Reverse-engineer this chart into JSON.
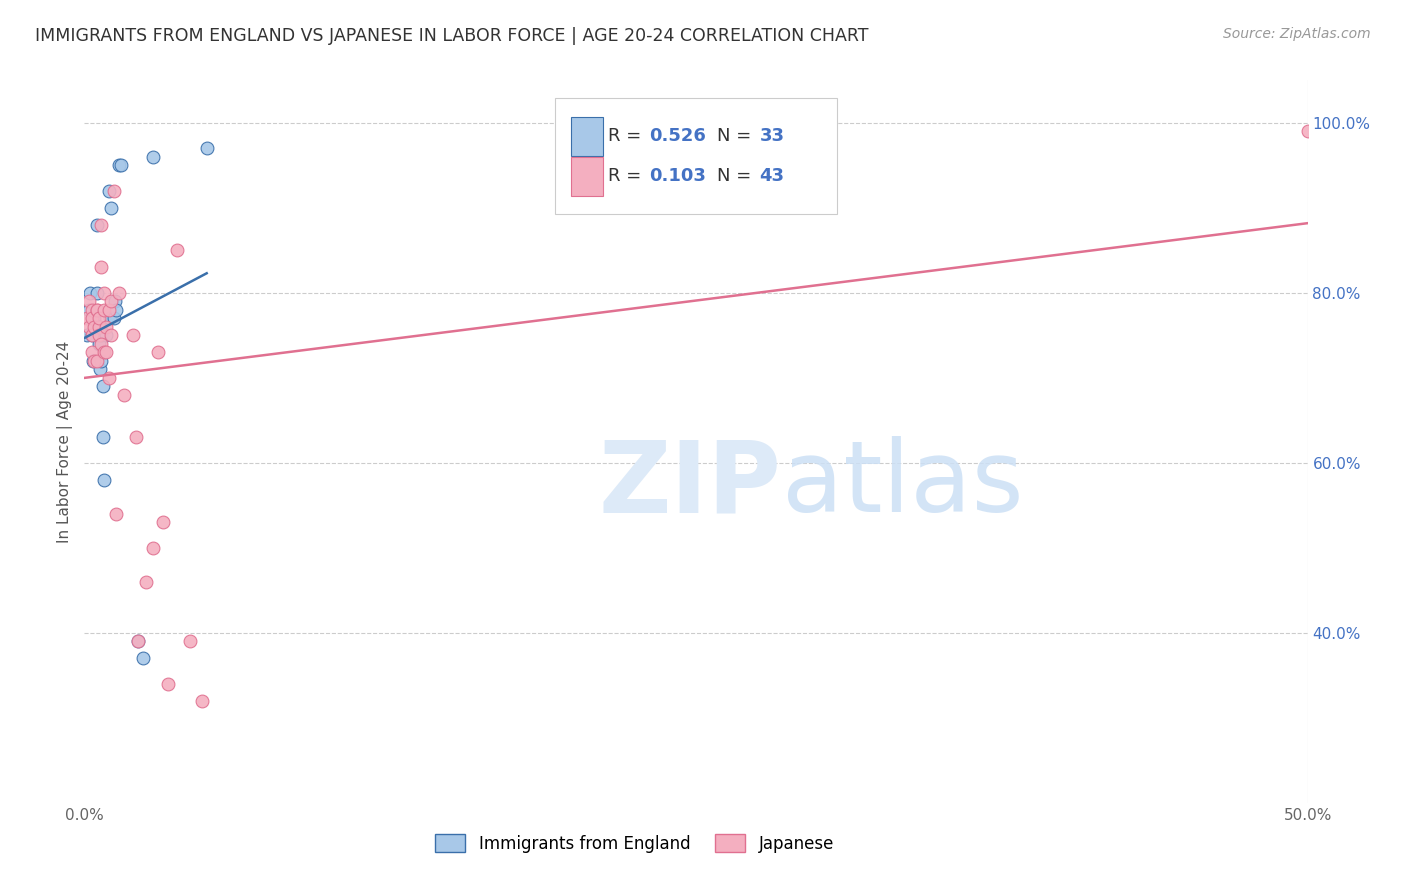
{
  "title": "IMMIGRANTS FROM ENGLAND VS JAPANESE IN LABOR FORCE | AGE 20-24 CORRELATION CHART",
  "source": "Source: ZipAtlas.com",
  "ylabel": "In Labor Force | Age 20-24",
  "xlim": [
    0.0,
    50.0
  ],
  "ylim": [
    20.0,
    105.0
  ],
  "xticks": [
    0.0,
    10.0,
    20.0,
    30.0,
    40.0,
    50.0
  ],
  "xticklabels": [
    "0.0%",
    "",
    "",
    "",
    "",
    "50.0%"
  ],
  "yticks_right": [
    40.0,
    60.0,
    80.0,
    100.0
  ],
  "ytick_right_labels": [
    "40.0%",
    "60.0%",
    "80.0%",
    "100.0%"
  ],
  "grid_color": "#cccccc",
  "background_color": "#ffffff",
  "color_england": "#a8c8e8",
  "color_japanese": "#f4afc0",
  "color_england_line": "#3a6faa",
  "color_japanese_line": "#e07090",
  "color_r_values": "#4472c4",
  "marker_size": 85,
  "england_x": [
    0.1,
    0.2,
    0.25,
    0.3,
    0.3,
    0.35,
    0.4,
    0.45,
    0.5,
    0.5,
    0.55,
    0.6,
    0.6,
    0.65,
    0.65,
    0.7,
    0.7,
    0.75,
    0.75,
    0.8,
    0.9,
    1.0,
    1.05,
    1.1,
    1.2,
    1.25,
    1.3,
    1.4,
    1.5,
    2.2,
    2.4,
    2.8,
    5.0
  ],
  "england_y": [
    75.0,
    78.0,
    80.0,
    75.0,
    77.0,
    72.0,
    77.0,
    76.0,
    80.0,
    88.0,
    76.0,
    76.0,
    74.0,
    71.0,
    76.0,
    75.0,
    72.0,
    69.0,
    63.0,
    58.0,
    75.0,
    92.0,
    77.0,
    90.0,
    77.0,
    79.0,
    78.0,
    95.0,
    95.0,
    39.0,
    37.0,
    96.0,
    97.0
  ],
  "japanese_x": [
    0.1,
    0.2,
    0.2,
    0.3,
    0.3,
    0.3,
    0.3,
    0.4,
    0.4,
    0.5,
    0.5,
    0.5,
    0.6,
    0.6,
    0.6,
    0.7,
    0.7,
    0.7,
    0.8,
    0.8,
    0.8,
    0.9,
    0.9,
    1.0,
    1.0,
    1.1,
    1.1,
    1.2,
    1.3,
    1.4,
    1.6,
    2.0,
    2.1,
    2.2,
    2.5,
    2.8,
    3.0,
    3.2,
    3.4,
    3.8,
    4.3,
    4.8,
    50.0
  ],
  "japanese_y": [
    77.0,
    79.0,
    76.0,
    78.0,
    77.0,
    75.0,
    73.0,
    76.0,
    72.0,
    78.0,
    78.0,
    72.0,
    76.0,
    77.0,
    75.0,
    88.0,
    83.0,
    74.0,
    80.0,
    78.0,
    73.0,
    76.0,
    73.0,
    78.0,
    70.0,
    79.0,
    75.0,
    92.0,
    54.0,
    80.0,
    68.0,
    75.0,
    63.0,
    39.0,
    46.0,
    50.0,
    73.0,
    53.0,
    34.0,
    85.0,
    39.0,
    32.0,
    99.0
  ]
}
